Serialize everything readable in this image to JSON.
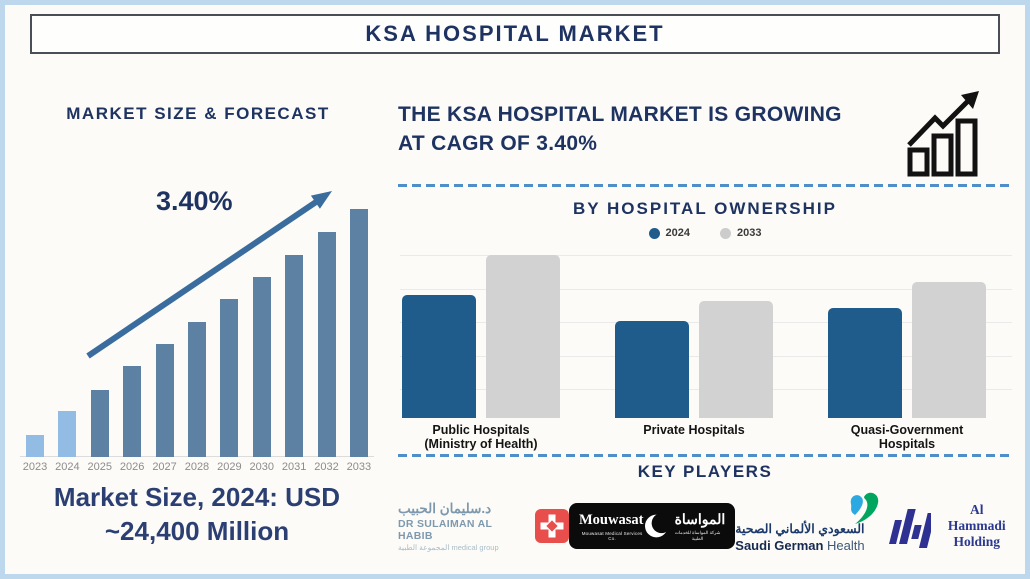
{
  "title": "KSA HOSPITAL MARKET",
  "palette": {
    "navy_text": "#1E3361",
    "frame_border": "#BDD7EC",
    "background": "#FCFBF7",
    "dashed_line": "#4E8FCA",
    "arrow": "#3A6D9E",
    "forecast_bar": "#5D81A3",
    "forecast_bar_highlight": "#93BCE4",
    "ownership_2024": "#1F5C8C",
    "ownership_2033": "#D2D2D2"
  },
  "left_panel": {
    "heading": "MARKET SIZE & FORECAST",
    "cagr_label": "3.40%",
    "market_size_line1": "Market Size, 2024: USD",
    "market_size_line2": "~24,400 Million"
  },
  "right_panel": {
    "headline_line1": "THE KSA HOSPITAL MARKET IS GROWING",
    "headline_line2": "AT CAGR OF 3.40%",
    "growth_icon": "outlined-bar-chart-with-rising-zigzag-arrow",
    "ownership": {
      "heading": "BY HOSPITAL OWNERSHIP",
      "legend": [
        {
          "label": "2024",
          "color": "#1F5C8C"
        },
        {
          "label": "2033",
          "color": "#CCCCCC"
        }
      ]
    },
    "key_players": {
      "heading": "KEY PLAYERS",
      "players": [
        {
          "name": "Dr Sulaiman Al Habib Medical Group",
          "arabic": "د.سليمان الحبيب",
          "latin": "DR SULAIMAN AL HABIB",
          "tagline": "medical group المجموعة الطبية",
          "icon": "red-rounded-square-with-white-cross"
        },
        {
          "name": "Mouwasat Medical Services Co.",
          "latin": "Mouwasat",
          "latin_sub": "Mouwasat Medical Services Co.",
          "arabic": "المواساة",
          "arabic_sub": "شركة المواساة للخدمات الطبية",
          "icon": "white-crescent-on-black"
        },
        {
          "name": "Saudi German Health",
          "arabic": "السعودي الألماني الصحية",
          "latin_bold": "Saudi German",
          "latin_light": "Health",
          "icon": "blue-green-heart-swoosh"
        },
        {
          "name": "Al Hammadi Holding",
          "line1": "Al Hammadi",
          "line2": "Holding",
          "icon": "indigo-slanted-bars"
        }
      ]
    }
  },
  "chart_data": [
    {
      "id": "market-size-forecast",
      "type": "bar",
      "title": "MARKET SIZE & FORECAST",
      "categories": [
        "2023",
        "2024",
        "2025",
        "2026",
        "2027",
        "2028",
        "2029",
        "2030",
        "2031",
        "2032",
        "2033"
      ],
      "values": [
        22,
        46,
        67,
        91,
        113,
        135,
        158,
        180,
        202,
        225,
        248
      ],
      "value_unit": "relative bar height in px (stylized chart, no value axis shown)",
      "annotation": "3.40%",
      "known_point": {
        "category": "2024",
        "value": 24400,
        "unit": "USD Million"
      },
      "highlight_years": [
        "2023",
        "2024"
      ],
      "highlight_color": "#93BCE4",
      "bar_color": "#5D81A3",
      "xlabel": "",
      "ylabel": "",
      "grid": false,
      "legend": false
    },
    {
      "id": "by-hospital-ownership",
      "type": "bar",
      "title": "BY HOSPITAL OWNERSHIP",
      "categories": [
        "Public Hospitals (Ministry of Health)",
        "Private Hospitals",
        "Quasi-Government Hospitals"
      ],
      "category_lines": [
        [
          "Public Hospitals",
          "(Ministry of Health)"
        ],
        [
          "Private Hospitals"
        ],
        [
          "Quasi-Government",
          "Hospitals"
        ]
      ],
      "series": [
        {
          "name": "2024",
          "color": "#1F5C8C",
          "values": [
            123,
            97,
            110
          ]
        },
        {
          "name": "2033",
          "color": "#D2D2D2",
          "values": [
            163,
            117,
            136
          ]
        }
      ],
      "value_unit": "relative bar height in px (no value axis shown)",
      "grid": true,
      "legend_position": "top"
    }
  ]
}
